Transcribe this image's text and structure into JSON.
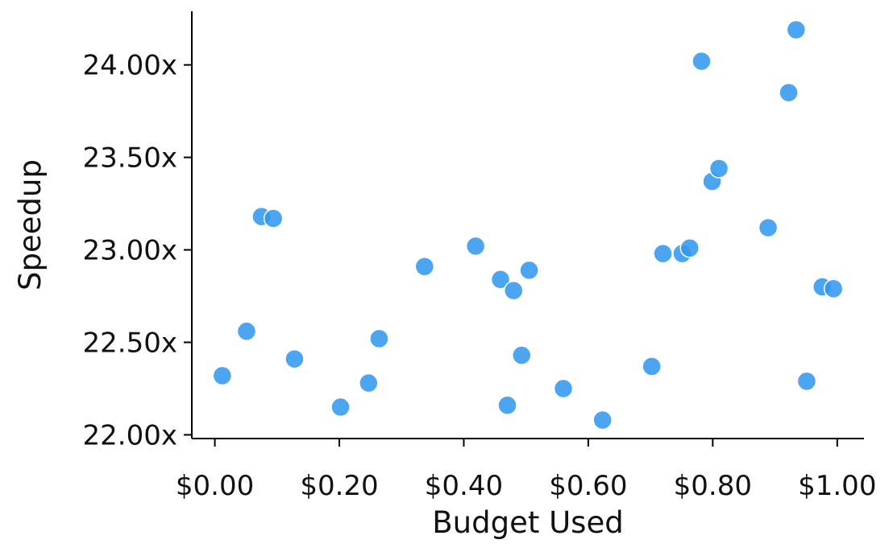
{
  "chart_data": {
    "type": "scatter",
    "xlabel": "Budget Used",
    "ylabel": "Speedup",
    "x_ticks": [
      {
        "value": 0.0,
        "label": "$0.00"
      },
      {
        "value": 0.2,
        "label": "$0.20"
      },
      {
        "value": 0.4,
        "label": "$0.40"
      },
      {
        "value": 0.6,
        "label": "$0.60"
      },
      {
        "value": 0.8,
        "label": "$0.80"
      },
      {
        "value": 1.0,
        "label": "$1.00"
      }
    ],
    "y_ticks": [
      {
        "value": 22.0,
        "label": "22.00x"
      },
      {
        "value": 22.5,
        "label": "22.50x"
      },
      {
        "value": 23.0,
        "label": "23.00x"
      },
      {
        "value": 23.5,
        "label": "23.50x"
      },
      {
        "value": 24.0,
        "label": "24.00x"
      }
    ],
    "xlim": [
      -0.037,
      1.043
    ],
    "ylim": [
      21.98,
      24.29
    ],
    "grid": false,
    "color": "#3399ee",
    "points": [
      {
        "x": 0.012,
        "y": 22.32
      },
      {
        "x": 0.051,
        "y": 22.56
      },
      {
        "x": 0.075,
        "y": 23.18
      },
      {
        "x": 0.094,
        "y": 23.17
      },
      {
        "x": 0.128,
        "y": 22.41
      },
      {
        "x": 0.202,
        "y": 22.15
      },
      {
        "x": 0.247,
        "y": 22.28
      },
      {
        "x": 0.264,
        "y": 22.52
      },
      {
        "x": 0.337,
        "y": 22.91
      },
      {
        "x": 0.419,
        "y": 23.02
      },
      {
        "x": 0.459,
        "y": 22.84
      },
      {
        "x": 0.47,
        "y": 22.16
      },
      {
        "x": 0.48,
        "y": 22.78
      },
      {
        "x": 0.493,
        "y": 22.43
      },
      {
        "x": 0.505,
        "y": 22.89
      },
      {
        "x": 0.56,
        "y": 22.25
      },
      {
        "x": 0.623,
        "y": 22.08
      },
      {
        "x": 0.702,
        "y": 22.37
      },
      {
        "x": 0.72,
        "y": 22.98
      },
      {
        "x": 0.751,
        "y": 22.98
      },
      {
        "x": 0.763,
        "y": 23.01
      },
      {
        "x": 0.782,
        "y": 24.02
      },
      {
        "x": 0.799,
        "y": 23.37
      },
      {
        "x": 0.81,
        "y": 23.44
      },
      {
        "x": 0.889,
        "y": 23.12
      },
      {
        "x": 0.922,
        "y": 23.85
      },
      {
        "x": 0.934,
        "y": 24.19
      },
      {
        "x": 0.951,
        "y": 22.29
      },
      {
        "x": 0.976,
        "y": 22.8
      },
      {
        "x": 0.994,
        "y": 22.79
      }
    ]
  }
}
